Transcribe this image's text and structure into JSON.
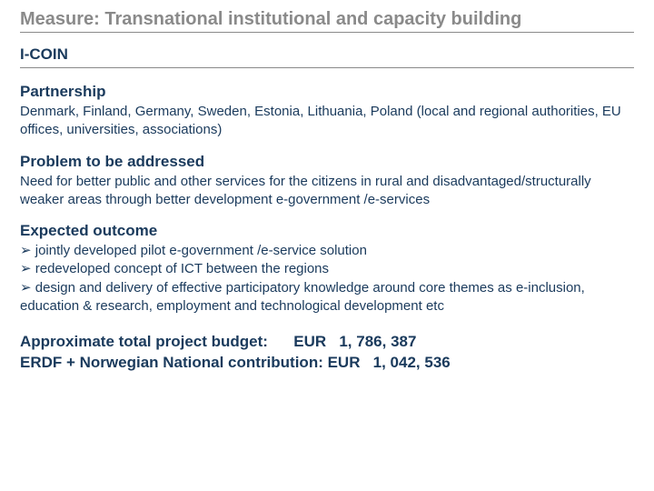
{
  "title": "Measure: Transnational institutional and capacity building",
  "subtitle": "I-COIN",
  "sections": {
    "partnership": {
      "heading": "Partnership",
      "body": "Denmark, Finland, Germany, Sweden, Estonia, Lithuania, Poland (local and regional authorities, EU offices, universities, associations)"
    },
    "problem": {
      "heading": "Problem to be addressed",
      "body": "Need for better public and other services for the citizens in rural and disadvantaged/structurally weaker areas through better development e-government /e-services"
    },
    "outcome": {
      "heading": "Expected outcome",
      "bullets": [
        "jointly developed pilot e-government /e-service solution",
        "redeveloped concept of ICT between the regions",
        "design and delivery of effective participatory knowledge  around core themes as e-inclusion, education & research, employment and technological development etc"
      ]
    }
  },
  "budget": {
    "line1": "Approximate total project budget:      EUR   1, 786, 387",
    "line2": "ERDF + Norwegian National contribution: EUR   1, 042, 536"
  },
  "colors": {
    "title_color": "#8a8a8a",
    "text_color": "#1a3a5c",
    "divider_color": "#8a8a8a",
    "background": "#ffffff"
  },
  "typography": {
    "font_family": "Verdana",
    "title_fontsize": 20,
    "subtitle_fontsize": 17,
    "heading_fontsize": 17,
    "body_fontsize": 15,
    "budget_fontsize": 17
  }
}
